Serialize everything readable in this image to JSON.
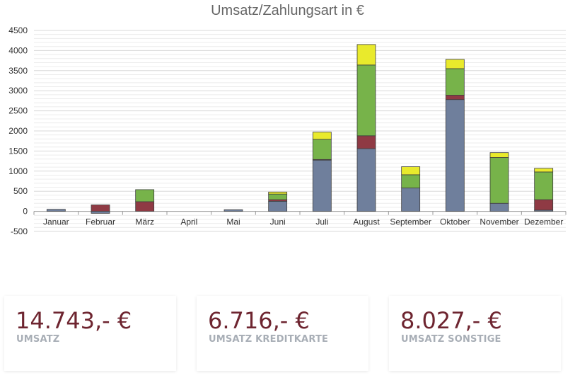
{
  "chart_data": {
    "type": "bar",
    "stacked": true,
    "title": "Umsatz/Zahlungsart in €",
    "categories": [
      "Januar",
      "Februar",
      "März",
      "April",
      "Mai",
      "Juni",
      "Juli",
      "August",
      "September",
      "Oktober",
      "November",
      "Dezember"
    ],
    "ylim": [
      -500,
      4500
    ],
    "yticks": [
      4500,
      4000,
      3500,
      3000,
      2500,
      2000,
      1500,
      1000,
      500,
      0,
      -500
    ],
    "grid": true,
    "series": [
      {
        "color": "#6f7f9c",
        "values": [
          50,
          -50,
          0,
          0,
          40,
          250,
          1280,
          1560,
          580,
          2780,
          200,
          30
        ]
      },
      {
        "color": "#8f3a44",
        "values": [
          0,
          160,
          240,
          0,
          0,
          40,
          10,
          320,
          0,
          110,
          0,
          260
        ]
      },
      {
        "color": "#77b34a",
        "values": [
          0,
          0,
          300,
          0,
          0,
          140,
          500,
          1760,
          330,
          660,
          1140,
          690
        ]
      },
      {
        "color": "#e9ea2c",
        "values": [
          0,
          0,
          0,
          0,
          0,
          50,
          180,
          510,
          200,
          230,
          120,
          90
        ]
      }
    ]
  },
  "cards": [
    {
      "value": "14.743,- €",
      "label": "UMSATZ"
    },
    {
      "value": "6.716,- €",
      "label": "UMSATZ KREDITKARTE"
    },
    {
      "value": "8.027,- €",
      "label": "UMSATZ SONSTIGE"
    }
  ]
}
